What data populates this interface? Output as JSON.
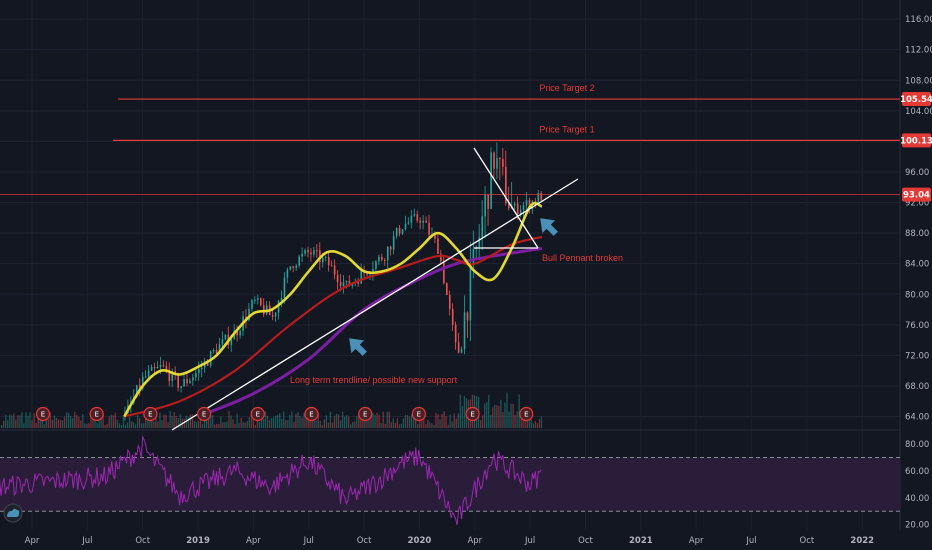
{
  "chart_data": {
    "type": "line",
    "title": "",
    "price_axis": {
      "ylim": [
        62.5,
        118.5
      ],
      "ticks": [
        116,
        112,
        108,
        104,
        100,
        96,
        92,
        88,
        84,
        80,
        76,
        72,
        68,
        64
      ],
      "tick_labels": [
        "116.00",
        "112.00",
        "108.00",
        "104.00",
        "100.00",
        "96.00",
        "92.00",
        "88.00",
        "84.00",
        "80.00",
        "76.00",
        "72.00",
        "68.00",
        "64.00"
      ]
    },
    "rsi_axis": {
      "ylim": [
        16,
        89
      ],
      "ticks": [
        80,
        60,
        40,
        20
      ],
      "tick_labels": [
        "80.00",
        "60.00",
        "40.00",
        "20.00"
      ],
      "overbought": 70,
      "oversold": 30
    },
    "time_axis": {
      "labels": [
        "Apr",
        "Jul",
        "Oct",
        "2019",
        "Apr",
        "Jul",
        "Oct",
        "2020",
        "Apr",
        "Jul",
        "Oct",
        "2021",
        "Apr",
        "Jul",
        "Oct",
        "2022"
      ],
      "bold": [
        "2019",
        "2020",
        "2021",
        "2022"
      ]
    },
    "last_price": 93.04,
    "last_price_label": "93.04",
    "price_targets": [
      {
        "label": "Price Target 1",
        "value": 100.13,
        "value_label": "100.13"
      },
      {
        "label": "Price Target 2",
        "value": 105.54,
        "value_label": "105.54"
      }
    ],
    "annotations": [
      {
        "text": "Bull Pennant broken"
      },
      {
        "text": "Long term trendline/ possible new support"
      }
    ],
    "earnings_marker": "E",
    "earnings_count": 10,
    "series": [
      {
        "key": "price",
        "color": "#26a69a",
        "down_color": "#ef5350",
        "values": [
          {
            "t": "2018-09",
            "v": 64
          },
          {
            "t": "2018-10",
            "v": 69
          },
          {
            "t": "2018-11",
            "v": 70.5
          },
          {
            "t": "2018-12",
            "v": 68
          },
          {
            "t": "2019-01",
            "v": 70
          },
          {
            "t": "2019-02",
            "v": 73
          },
          {
            "t": "2019-03",
            "v": 75
          },
          {
            "t": "2019-04",
            "v": 79
          },
          {
            "t": "2019-05",
            "v": 77
          },
          {
            "t": "2019-06",
            "v": 84
          },
          {
            "t": "2019-07",
            "v": 85.5
          },
          {
            "t": "2019-08",
            "v": 84
          },
          {
            "t": "2019-09",
            "v": 81
          },
          {
            "t": "2019-10",
            "v": 83
          },
          {
            "t": "2019-11",
            "v": 85
          },
          {
            "t": "2019-12",
            "v": 89
          },
          {
            "t": "2020-01",
            "v": 90
          },
          {
            "t": "2020-02",
            "v": 86
          },
          {
            "t": "2020-03",
            "v": 72
          },
          {
            "t": "2020-04",
            "v": 85
          },
          {
            "t": "2020-05",
            "v": 98
          },
          {
            "t": "2020-06",
            "v": 91
          },
          {
            "t": "2020-07",
            "v": 92
          },
          {
            "t": "2020-07-20",
            "v": 93
          }
        ]
      },
      {
        "key": "ma_fast",
        "color": "#e3d82f",
        "values": [
          {
            "t": "2018-09",
            "v": 64
          },
          {
            "t": "2018-10",
            "v": 68
          },
          {
            "t": "2018-11",
            "v": 70
          },
          {
            "t": "2018-12",
            "v": 69.5
          },
          {
            "t": "2019-01",
            "v": 70.5
          },
          {
            "t": "2019-02",
            "v": 72
          },
          {
            "t": "2019-03",
            "v": 75
          },
          {
            "t": "2019-04",
            "v": 77.5
          },
          {
            "t": "2019-05",
            "v": 78
          },
          {
            "t": "2019-06",
            "v": 80
          },
          {
            "t": "2019-07",
            "v": 83
          },
          {
            "t": "2019-08",
            "v": 85.5
          },
          {
            "t": "2019-09",
            "v": 85
          },
          {
            "t": "2019-10",
            "v": 83
          },
          {
            "t": "2019-11",
            "v": 83
          },
          {
            "t": "2019-12",
            "v": 84
          },
          {
            "t": "2020-01",
            "v": 86
          },
          {
            "t": "2020-02",
            "v": 88
          },
          {
            "t": "2020-03",
            "v": 86
          },
          {
            "t": "2020-04",
            "v": 83
          },
          {
            "t": "2020-05",
            "v": 82
          },
          {
            "t": "2020-06",
            "v": 86
          },
          {
            "t": "2020-07",
            "v": 91.5
          },
          {
            "t": "2020-07-20",
            "v": 91.5
          }
        ]
      },
      {
        "key": "ma_mid",
        "color": "#b71c1c",
        "values": [
          {
            "t": "2018-09",
            "v": 64
          },
          {
            "t": "2018-12",
            "v": 66
          },
          {
            "t": "2019-03",
            "v": 70
          },
          {
            "t": "2019-06",
            "v": 76
          },
          {
            "t": "2019-09",
            "v": 81
          },
          {
            "t": "2019-12",
            "v": 83.5
          },
          {
            "t": "2020-02",
            "v": 85
          },
          {
            "t": "2020-03",
            "v": 84.5
          },
          {
            "t": "2020-04",
            "v": 84
          },
          {
            "t": "2020-06",
            "v": 86.5
          },
          {
            "t": "2020-07-20",
            "v": 87.5
          }
        ]
      },
      {
        "key": "ma_slow",
        "color": "#7b1fa2",
        "values": [
          {
            "t": "2019-01",
            "v": 64
          },
          {
            "t": "2019-04",
            "v": 67
          },
          {
            "t": "2019-07",
            "v": 71.5
          },
          {
            "t": "2019-10",
            "v": 78
          },
          {
            "t": "2020-01",
            "v": 82
          },
          {
            "t": "2020-03",
            "v": 84
          },
          {
            "t": "2020-05",
            "v": 85
          },
          {
            "t": "2020-07-20",
            "v": 86
          }
        ]
      },
      {
        "key": "rsi",
        "color": "#9c27b0",
        "values": [
          {
            "t": "2018-02",
            "v": 48
          },
          {
            "t": "2018-05",
            "v": 52
          },
          {
            "t": "2018-08",
            "v": 56
          },
          {
            "t": "2018-10",
            "v": 78
          },
          {
            "t": "2018-12",
            "v": 42
          },
          {
            "t": "2019-03",
            "v": 60
          },
          {
            "t": "2019-05",
            "v": 48
          },
          {
            "t": "2019-07",
            "v": 68
          },
          {
            "t": "2019-09",
            "v": 38
          },
          {
            "t": "2019-11",
            "v": 55
          },
          {
            "t": "2019-12",
            "v": 66
          },
          {
            "t": "2020-01",
            "v": 71
          },
          {
            "t": "2020-03",
            "v": 22
          },
          {
            "t": "2020-05",
            "v": 70
          },
          {
            "t": "2020-07",
            "v": 50
          },
          {
            "t": "2020-07-20",
            "v": 58
          }
        ]
      }
    ],
    "trendlines": [
      {
        "name": "long-term-trendline",
        "from": {
          "t": "2018-11",
          "v": 62.5
        },
        "to": {
          "t": "2020-08",
          "v": 96
        }
      },
      {
        "name": "pennant-upper",
        "from": {
          "t": "2020-05",
          "v": 100
        },
        "to": {
          "t": "2020-08",
          "v": 87
        }
      },
      {
        "name": "pennant-lower",
        "from": {
          "t": "2020-04",
          "v": 87
        },
        "to": {
          "t": "2020-08",
          "v": 87
        }
      }
    ],
    "colors": {
      "background": "#131722",
      "price_target_line": "#e53935",
      "last_price_line": "#e53935",
      "rsi_band": "#2a1d3a",
      "arrow": "#4a90b8",
      "volume_up": "#26a69a",
      "volume_down": "#ef5350"
    }
  }
}
